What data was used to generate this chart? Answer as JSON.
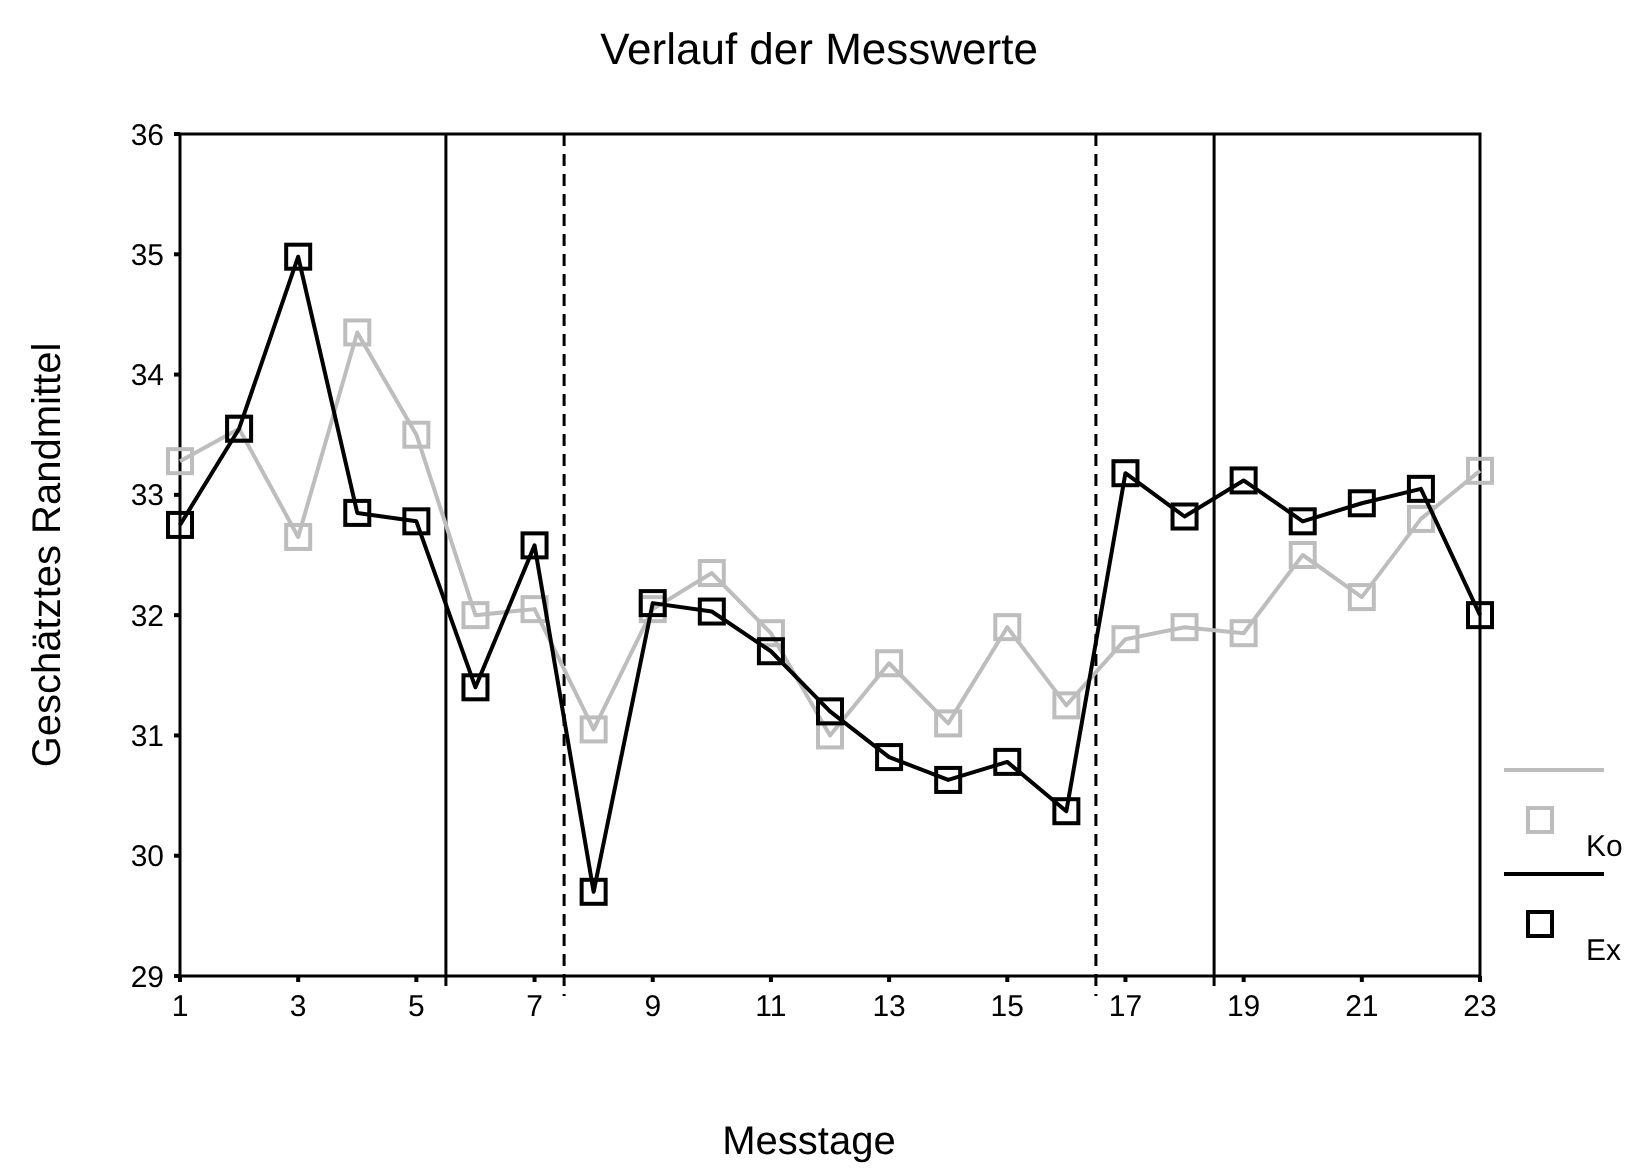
{
  "chart_data": {
    "type": "line",
    "title": "Verlauf der Messwerte",
    "xlabel": "Messtage",
    "ylabel": "Geschätztes Randmittel",
    "x": [
      1,
      2,
      3,
      4,
      5,
      6,
      7,
      8,
      9,
      10,
      11,
      12,
      13,
      14,
      15,
      16,
      17,
      18,
      19,
      20,
      21,
      22,
      23
    ],
    "series": [
      {
        "name": "Ko",
        "color": "#bdbdbd",
        "values": [
          33.28,
          33.55,
          32.65,
          34.35,
          33.5,
          32.0,
          32.05,
          31.05,
          32.05,
          32.35,
          31.85,
          31.0,
          31.6,
          31.1,
          31.9,
          31.25,
          31.8,
          31.9,
          31.85,
          32.5,
          32.15,
          32.8,
          33.2
        ]
      },
      {
        "name": "Ex",
        "color": "#000000",
        "values": [
          32.75,
          33.55,
          34.98,
          32.85,
          32.78,
          31.4,
          32.58,
          29.7,
          32.1,
          32.03,
          31.7,
          31.2,
          30.82,
          30.63,
          30.78,
          30.37,
          33.18,
          32.82,
          33.12,
          32.78,
          32.93,
          33.05,
          32.0
        ]
      }
    ],
    "xlim": [
      1,
      23
    ],
    "xticks": [
      1,
      3,
      5,
      7,
      9,
      11,
      13,
      15,
      17,
      19,
      21,
      23
    ],
    "ylim": [
      29,
      36
    ],
    "yticks": [
      29,
      30,
      31,
      32,
      33,
      34,
      35,
      36
    ],
    "ref_lines": [
      {
        "axis": "x",
        "value": 5.5,
        "line_style": "solid"
      },
      {
        "axis": "x",
        "value": 7.5,
        "line_style": "dashed"
      },
      {
        "axis": "x",
        "value": 16.5,
        "line_style": "dashed"
      },
      {
        "axis": "x",
        "value": 18.5,
        "line_style": "solid"
      }
    ],
    "marker": "square",
    "line_style": "solid",
    "grid": false,
    "legend": "right"
  }
}
